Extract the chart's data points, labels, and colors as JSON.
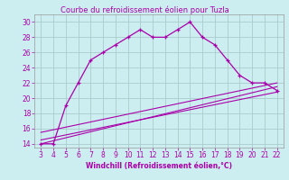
{
  "title": "Courbe du refroidissement éolien pour Tuzla",
  "xlabel": "Windchill (Refroidissement éolien,°C)",
  "bg_color": "#cceef0",
  "grid_color": "#aacccc",
  "line_color": "#aa00aa",
  "main_x": [
    3,
    4,
    5,
    6,
    7,
    8,
    9,
    10,
    11,
    12,
    13,
    14,
    15,
    16,
    17,
    18,
    19,
    20,
    21,
    22
  ],
  "main_y": [
    14,
    14,
    19,
    22,
    25,
    26,
    27,
    28,
    29,
    28,
    28,
    29,
    30,
    28,
    27,
    25,
    23,
    22,
    22,
    21
  ],
  "line2_x": [
    3,
    22
  ],
  "line2_y": [
    15.5,
    22.0
  ],
  "line3_x": [
    3,
    22
  ],
  "line3_y": [
    14.5,
    20.8
  ],
  "line4_x": [
    3,
    22
  ],
  "line4_y": [
    14.0,
    21.5
  ],
  "xlim": [
    2.5,
    22.5
  ],
  "ylim": [
    13.5,
    31.0
  ],
  "xticks": [
    3,
    4,
    5,
    6,
    7,
    8,
    9,
    10,
    11,
    12,
    13,
    14,
    15,
    16,
    17,
    18,
    19,
    20,
    21,
    22
  ],
  "yticks": [
    14,
    16,
    18,
    20,
    22,
    24,
    26,
    28,
    30
  ],
  "title_fontsize": 6.0,
  "label_fontsize": 5.5,
  "tick_fontsize": 5.5
}
